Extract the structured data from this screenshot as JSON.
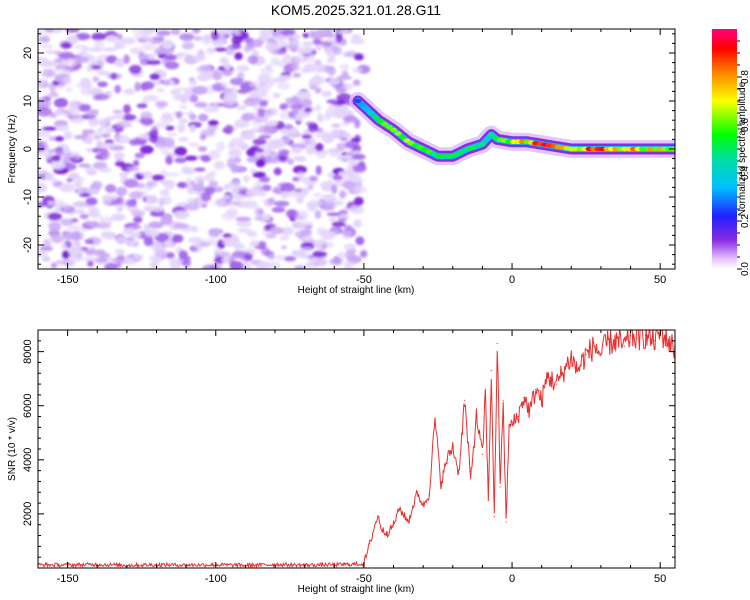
{
  "title": "KOM5.2025.321.01.28.G11",
  "chart_data": [
    {
      "type": "heatmap",
      "xlabel": "Height of straight line (km)",
      "ylabel": "Frequency (Hz)",
      "xlim": [
        -160,
        55
      ],
      "ylim": [
        -25,
        25
      ],
      "xticks": [
        -150,
        -100,
        -50,
        0,
        50
      ],
      "yticks": [
        -20,
        -10,
        0,
        10,
        20
      ],
      "noise_region_x": [
        -160,
        -50
      ],
      "ridge": {
        "x": [
          -52,
          -45,
          -40,
          -35,
          -30,
          -25,
          -20,
          -15,
          -10,
          -7,
          -5,
          0,
          5,
          10,
          15,
          20,
          30,
          40,
          55
        ],
        "freq": [
          10,
          6,
          4,
          1.5,
          0,
          -1.5,
          -1.5,
          0,
          1,
          3,
          2,
          1.5,
          1.5,
          1,
          0.5,
          0,
          0,
          0,
          0
        ],
        "amplitude": [
          0.3,
          0.55,
          0.6,
          0.7,
          0.65,
          0.55,
          0.6,
          0.6,
          0.55,
          0.45,
          0.55,
          0.75,
          0.8,
          0.9,
          0.85,
          0.8,
          0.9,
          0.8,
          0.7
        ]
      },
      "colorbar": {
        "label": "Normalized spectral amplitude",
        "range": [
          0,
          1
        ],
        "ticks": [
          "0.0",
          "0.2",
          "0.4",
          "0.6",
          "0.8"
        ]
      }
    },
    {
      "type": "line",
      "xlabel": "Height of straight line (km)",
      "ylabel": "SNR (10 * v/v)",
      "xlim": [
        -160,
        55
      ],
      "ylim": [
        0,
        8800
      ],
      "xticks": [
        -150,
        -100,
        -50,
        0,
        50
      ],
      "yticks": [
        2000,
        4000,
        6000,
        8000
      ],
      "series": [
        {
          "name": "SNR",
          "color": "#e83030",
          "x": [
            -160,
            -150,
            -140,
            -130,
            -120,
            -110,
            -100,
            -90,
            -80,
            -70,
            -60,
            -50,
            -48,
            -46,
            -45,
            -44,
            -42,
            -40,
            -38,
            -35,
            -32,
            -30,
            -28,
            -26,
            -24,
            -22,
            -20,
            -18,
            -16,
            -14,
            -12,
            -10,
            -9,
            -8,
            -7,
            -6,
            -5,
            -4,
            -3,
            -2,
            -1,
            0,
            2,
            4,
            6,
            8,
            10,
            12,
            15,
            18,
            20,
            22,
            25,
            28,
            30,
            32,
            35,
            38,
            40,
            42,
            45,
            48,
            50,
            52,
            55
          ],
          "y": [
            120,
            110,
            130,
            100,
            120,
            110,
            120,
            100,
            130,
            110,
            120,
            150,
            900,
            1700,
            1900,
            1400,
            1300,
            1600,
            2200,
            1700,
            2800,
            2300,
            2700,
            5500,
            3100,
            4000,
            4500,
            3500,
            6200,
            3300,
            5600,
            4200,
            6500,
            2500,
            7300,
            1900,
            8300,
            3000,
            6200,
            1700,
            5200,
            5300,
            5600,
            6300,
            5800,
            6600,
            6200,
            7100,
            6800,
            7400,
            7800,
            7300,
            7900,
            8200,
            7900,
            8300,
            8400,
            8200,
            8600,
            8500,
            8600,
            8400,
            8700,
            8500,
            8100
          ]
        }
      ]
    }
  ]
}
